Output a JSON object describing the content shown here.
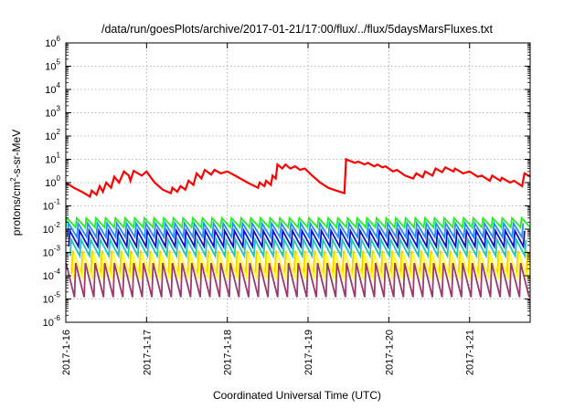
{
  "chart_data": {
    "type": "line",
    "title": "/data/run/goesPlots/archive/2017-01-21/17:00/flux/../flux/5daysMarsFluxes.txt",
    "xlabel": "Coordinated Universal Time (UTC)",
    "ylabel": {
      "base": "protons/cm",
      "sup": "2",
      "rest": "-s-sr-MeV"
    },
    "yscale": "log",
    "ylim_exp": [
      -6,
      6
    ],
    "y_ticks": [
      {
        "exp": -6,
        "label": "10",
        "sup": "-6"
      },
      {
        "exp": -5,
        "label": "10",
        "sup": "-5"
      },
      {
        "exp": -4,
        "label": "10",
        "sup": "-4"
      },
      {
        "exp": -3,
        "label": "10",
        "sup": "-3"
      },
      {
        "exp": -2,
        "label": "10",
        "sup": "-2"
      },
      {
        "exp": -1,
        "label": "10",
        "sup": "-1"
      },
      {
        "exp": 0,
        "label": "10",
        "sup": "0"
      },
      {
        "exp": 1,
        "label": "10",
        "sup": "1"
      },
      {
        "exp": 2,
        "label": "10",
        "sup": "2"
      },
      {
        "exp": 3,
        "label": "10",
        "sup": "3"
      },
      {
        "exp": 4,
        "label": "10",
        "sup": "4"
      },
      {
        "exp": 5,
        "label": "10",
        "sup": "5"
      },
      {
        "exp": 6,
        "label": "10",
        "sup": "6"
      }
    ],
    "x_ticks": [
      {
        "day": 0,
        "label": "2017-1-16"
      },
      {
        "day": 1,
        "label": "2017-1-17"
      },
      {
        "day": 2,
        "label": "2017-1-18"
      },
      {
        "day": 3,
        "label": "2017-1-19"
      },
      {
        "day": 4,
        "label": "2017-1-20"
      },
      {
        "day": 5,
        "label": "2017-1-21"
      }
    ],
    "xlim_days": [
      0,
      5.75
    ],
    "grid": true,
    "series": [
      {
        "color": "#ff0000",
        "points": [
          [
            0.0,
            1.0
          ],
          [
            0.1,
            0.6
          ],
          [
            0.2,
            0.4
          ],
          [
            0.3,
            0.25
          ],
          [
            0.32,
            0.45
          ],
          [
            0.38,
            0.3
          ],
          [
            0.42,
            0.7
          ],
          [
            0.46,
            0.4
          ],
          [
            0.5,
            1.0
          ],
          [
            0.56,
            0.6
          ],
          [
            0.6,
            1.8
          ],
          [
            0.66,
            1.0
          ],
          [
            0.72,
            3.0
          ],
          [
            0.78,
            2.0
          ],
          [
            0.8,
            1.2
          ],
          [
            0.84,
            3.2
          ],
          [
            0.94,
            2.0
          ],
          [
            1.0,
            3.0
          ],
          [
            1.1,
            1.0
          ],
          [
            1.2,
            0.5
          ],
          [
            1.3,
            0.35
          ],
          [
            1.32,
            0.6
          ],
          [
            1.38,
            0.4
          ],
          [
            1.42,
            0.7
          ],
          [
            1.48,
            0.5
          ],
          [
            1.52,
            1.2
          ],
          [
            1.58,
            0.8
          ],
          [
            1.62,
            2.5
          ],
          [
            1.68,
            1.5
          ],
          [
            1.72,
            3.5
          ],
          [
            1.8,
            2.2
          ],
          [
            1.84,
            3.5
          ],
          [
            1.92,
            2.5
          ],
          [
            2.0,
            3.0
          ],
          [
            2.12,
            1.8
          ],
          [
            2.25,
            1.0
          ],
          [
            2.38,
            0.6
          ],
          [
            2.4,
            1.0
          ],
          [
            2.46,
            0.7
          ],
          [
            2.48,
            1.2
          ],
          [
            2.54,
            0.8
          ],
          [
            2.56,
            2.0
          ],
          [
            2.6,
            1.5
          ],
          [
            2.62,
            6.0
          ],
          [
            2.68,
            4.0
          ],
          [
            2.72,
            6.0
          ],
          [
            2.78,
            4.0
          ],
          [
            2.84,
            5.0
          ],
          [
            2.9,
            3.5
          ],
          [
            2.96,
            4.0
          ],
          [
            3.05,
            2.0
          ],
          [
            3.15,
            1.0
          ],
          [
            3.25,
            0.6
          ],
          [
            3.35,
            0.45
          ],
          [
            3.45,
            0.35
          ],
          [
            3.47,
            10.0
          ],
          [
            3.58,
            7.0
          ],
          [
            3.62,
            8.0
          ],
          [
            3.7,
            6.0
          ],
          [
            3.74,
            7.0
          ],
          [
            3.82,
            5.0
          ],
          [
            3.86,
            6.0
          ],
          [
            3.92,
            4.5
          ],
          [
            3.96,
            5.0
          ],
          [
            4.05,
            3.0
          ],
          [
            4.1,
            3.5
          ],
          [
            4.2,
            2.0
          ],
          [
            4.3,
            1.5
          ],
          [
            4.34,
            2.5
          ],
          [
            4.42,
            1.7
          ],
          [
            4.45,
            3.0
          ],
          [
            4.54,
            2.0
          ],
          [
            4.58,
            4.0
          ],
          [
            4.66,
            2.8
          ],
          [
            4.7,
            4.5
          ],
          [
            4.8,
            3.0
          ],
          [
            4.82,
            4.0
          ],
          [
            4.92,
            2.5
          ],
          [
            5.0,
            3.0
          ],
          [
            5.1,
            1.8
          ],
          [
            5.15,
            2.0
          ],
          [
            5.25,
            1.2
          ],
          [
            5.28,
            2.0
          ],
          [
            5.38,
            1.2
          ],
          [
            5.4,
            1.6
          ],
          [
            5.5,
            1.0
          ],
          [
            5.55,
            1.2
          ],
          [
            5.65,
            0.7
          ],
          [
            5.68,
            2.5
          ],
          [
            5.75,
            1.8
          ],
          [
            5.76,
            3.0
          ]
        ]
      },
      {
        "color": "#22ee22",
        "base": 0.012,
        "peak": 0.03,
        "cycles": 48,
        "phase": 0.0
      },
      {
        "color": "#1e90ff",
        "base": 0.0045,
        "peak": 0.018,
        "cycles": 48,
        "phase": 0.15
      },
      {
        "color": "#1010c8",
        "base": 0.0018,
        "peak": 0.0085,
        "cycles": 48,
        "phase": 0.3
      },
      {
        "color": "#19c8b4",
        "base": 0.0007,
        "peak": 0.0035,
        "cycles": 48,
        "phase": 0.45
      },
      {
        "color": "#ffcc00",
        "base": 0.00012,
        "peak": 0.0012,
        "cycles": 48,
        "phase": 0.6
      },
      {
        "color": "#ffff33",
        "base": 7e-05,
        "peak": 0.0009,
        "cycles": 48,
        "phase": 0.75
      },
      {
        "color": "#9b3a6e",
        "base": 1.2e-05,
        "peak": 0.00035,
        "cycles": 48,
        "phase": 0.9
      }
    ]
  }
}
